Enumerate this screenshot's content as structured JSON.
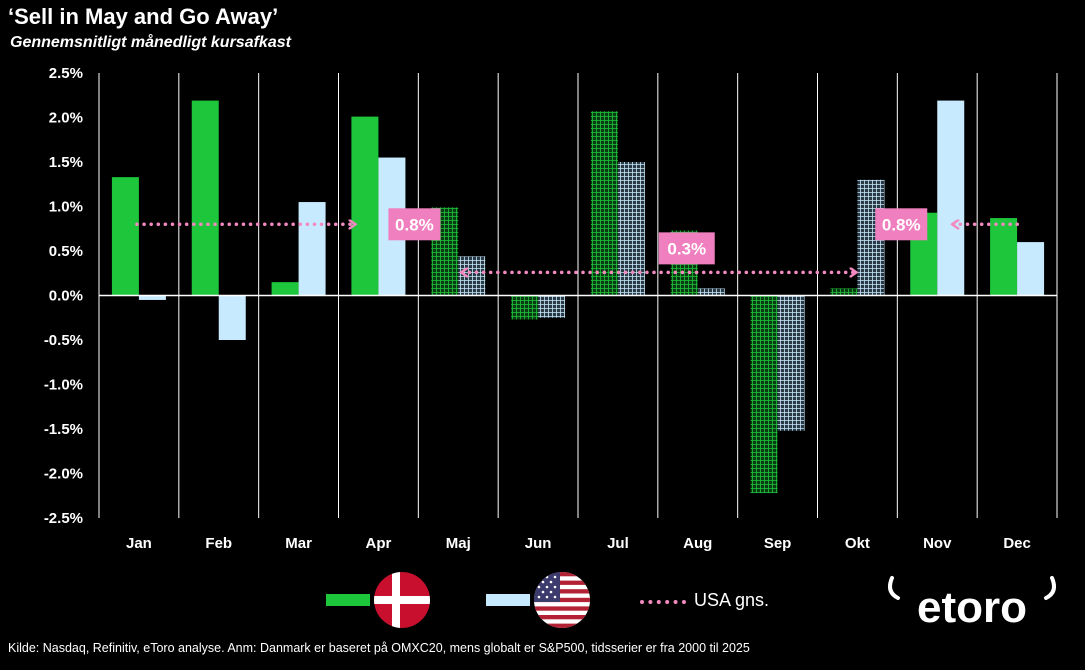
{
  "header": {
    "title": "‘Sell in May and Go Away’",
    "subtitle": "Gennemsnitligt månedligt kursafkast"
  },
  "chart_data": {
    "type": "bar",
    "categories": [
      "Jan",
      "Feb",
      "Mar",
      "Apr",
      "Maj",
      "Jun",
      "Jul",
      "Aug",
      "Sep",
      "Okt",
      "Nov",
      "Dec"
    ],
    "series": [
      {
        "key": "dk",
        "values": [
          1.33,
          2.19,
          0.15,
          2.01,
          0.99,
          -0.27,
          2.07,
          0.73,
          -2.22,
          0.08,
          0.93,
          0.87
        ]
      },
      {
        "key": "us",
        "values": [
          -0.05,
          -0.5,
          1.05,
          1.55,
          0.44,
          -0.25,
          1.5,
          0.08,
          -1.52,
          1.3,
          2.19,
          0.6
        ]
      }
    ],
    "highlighted_categories": [
      "Maj",
      "Jun",
      "Jul",
      "Aug",
      "Sep",
      "Okt"
    ],
    "ylim": [
      -2.5,
      2.5
    ],
    "yticks": [
      "-2.5%",
      "-2.0%",
      "-1.5%",
      "-1.0%",
      "-0.5%",
      "0.0%",
      "0.5%",
      "1.0%",
      "1.5%",
      "2.0%",
      "2.5%"
    ],
    "ytick_values": [
      -2.5,
      -2.0,
      -1.5,
      -1.0,
      -0.5,
      0.0,
      0.5,
      1.0,
      1.5,
      2.0,
      2.5
    ],
    "grid": "vertical",
    "averages": [
      {
        "label": "0.8%",
        "value": 0.8,
        "from": "Jan",
        "to": "Apr"
      },
      {
        "label": "0.3%",
        "value": 0.26,
        "from": "Maj",
        "to": "Okt"
      },
      {
        "label": "0.8%",
        "value": 0.8,
        "from": "Nov",
        "to": "Dec"
      }
    ]
  },
  "legend": {
    "average_label": "USA gns."
  },
  "colors": {
    "dk_bar": "#1ec63c",
    "us_bar": "#c8eafe",
    "average_line": "#f28ac0",
    "callout_bg": "#f07fbf"
  },
  "footer": {
    "source": "Kilde: Nasdaq, Refinitiv, eToro analyse. Anm: Danmark er baseret på OMXC20, mens globalt er S&P500, tidsserier er fra 2000 til 2025"
  },
  "logo": {
    "text": "etoro"
  }
}
